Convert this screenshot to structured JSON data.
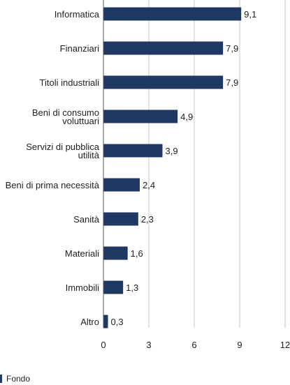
{
  "chart_data": {
    "type": "bar",
    "orientation": "horizontal",
    "categories": [
      [
        "Informatica"
      ],
      [
        "Finanziari"
      ],
      [
        "Titoli industriali"
      ],
      [
        "Beni di consumo",
        "voluttuari"
      ],
      [
        "Servizi di pubblica",
        "utilità"
      ],
      [
        "Beni di prima necessità"
      ],
      [
        "Sanità"
      ],
      [
        "Materiali"
      ],
      [
        "Immobili"
      ],
      [
        "Altro"
      ]
    ],
    "series": [
      {
        "name": "Fondo",
        "values": [
          9.1,
          7.9,
          7.9,
          4.9,
          3.9,
          2.4,
          2.3,
          1.6,
          1.3,
          0.3
        ],
        "labels": [
          "9,1",
          "7,9",
          "7,9",
          "4,9",
          "3,9",
          "2,4",
          "2,3",
          "1,6",
          "1,3",
          "0,3"
        ]
      }
    ],
    "xlim": [
      0,
      12
    ],
    "xticks": [
      0,
      3,
      6,
      9,
      12
    ],
    "xtick_labels": [
      "0",
      "3",
      "6",
      "9",
      "12"
    ],
    "grid": true,
    "legend": "bottom-left",
    "colors": {
      "bar": "#1f3864",
      "grid": "#e3e3e3",
      "axis": "#555555",
      "legend_swatch": "#1f3864"
    }
  }
}
